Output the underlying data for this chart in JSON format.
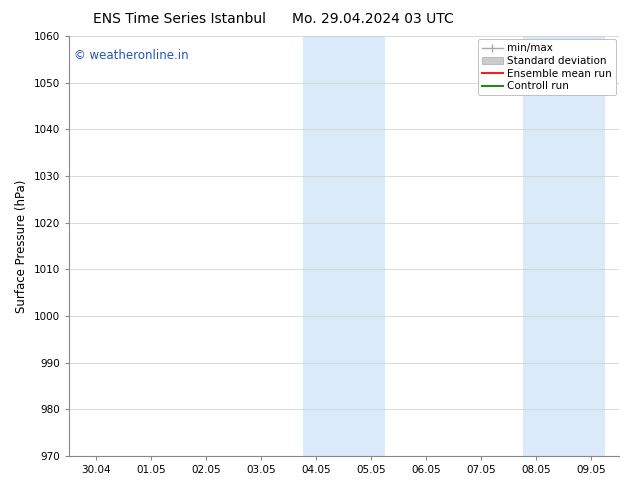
{
  "title_left": "ENS Time Series Istanbul",
  "title_right": "Mo. 29.04.2024 03 UTC",
  "ylabel": "Surface Pressure (hPa)",
  "ylim": [
    970,
    1060
  ],
  "yticks": [
    970,
    980,
    990,
    1000,
    1010,
    1020,
    1030,
    1040,
    1050,
    1060
  ],
  "x_tick_labels": [
    "30.04",
    "01.05",
    "02.05",
    "03.05",
    "04.05",
    "05.05",
    "06.05",
    "07.05",
    "08.05",
    "09.05"
  ],
  "x_tick_positions": [
    0,
    1,
    2,
    3,
    4,
    5,
    6,
    7,
    8,
    9
  ],
  "xlim": [
    -0.5,
    9.5
  ],
  "shaded_regions": [
    {
      "x_start": 3.75,
      "x_end": 5.25
    },
    {
      "x_start": 7.75,
      "x_end": 9.25
    }
  ],
  "shade_color": "#daeaf8",
  "shade_color2": "#d0e8f5",
  "watermark": "© weatheronline.in",
  "watermark_color": "#2255bb",
  "background_color": "#ffffff",
  "grid_color": "#cccccc",
  "spine_color": "#888888",
  "title_fontsize": 10,
  "tick_fontsize": 7.5,
  "ylabel_fontsize": 8.5,
  "watermark_fontsize": 8.5,
  "legend_fontsize": 7.5
}
